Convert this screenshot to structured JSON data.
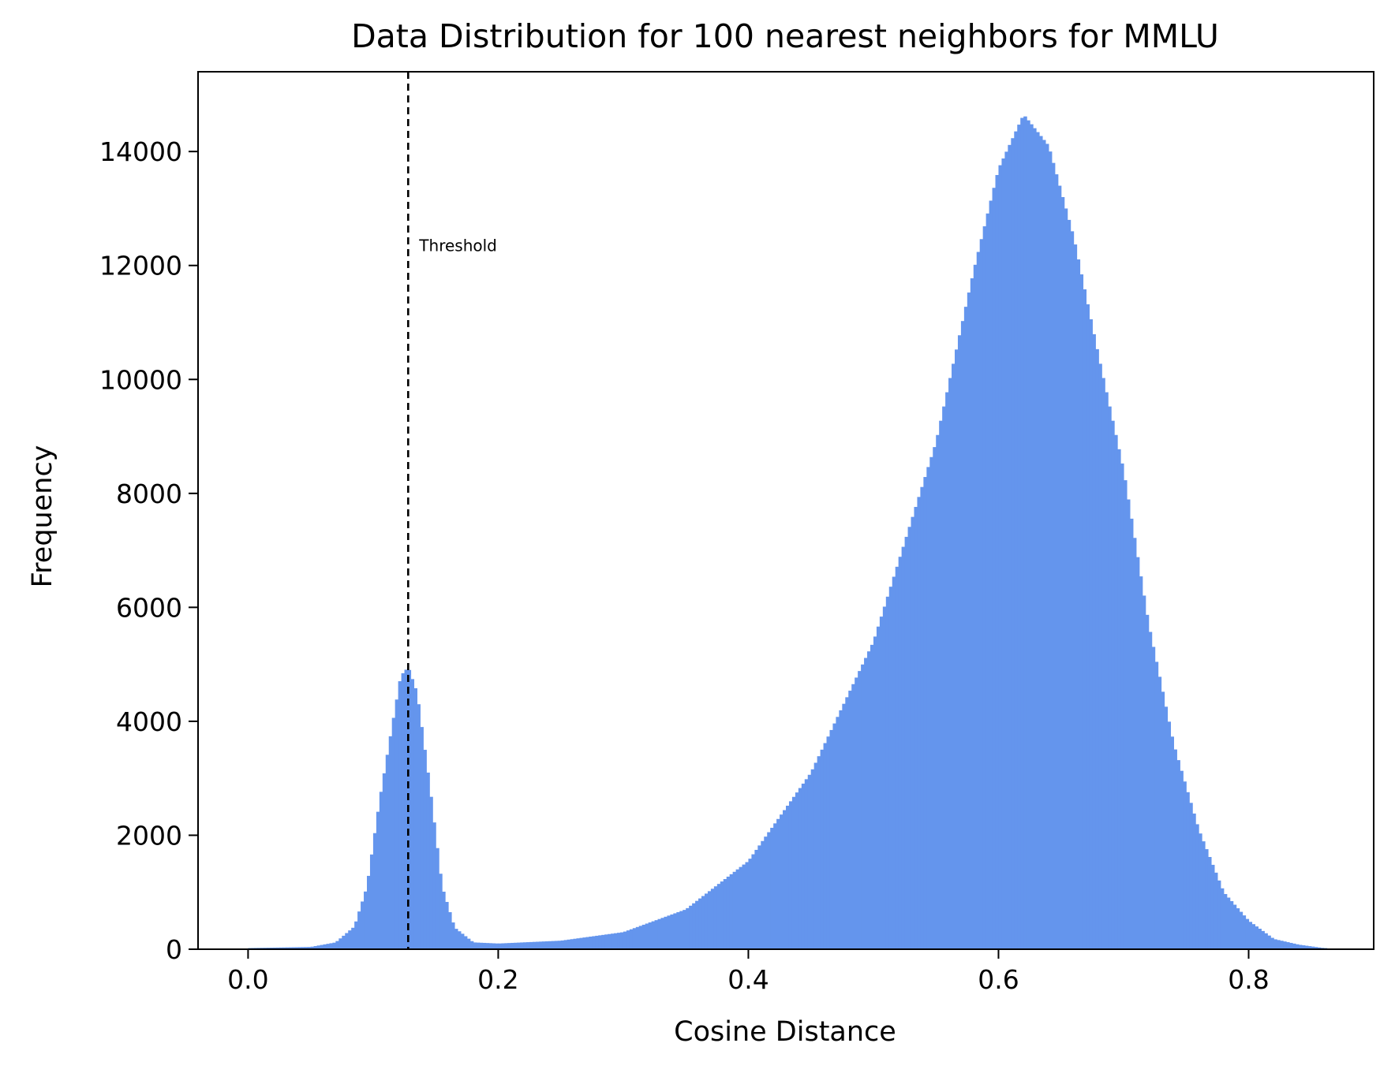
{
  "chart_data": {
    "type": "bar",
    "title": "Data Distribution for 100 nearest neighbors for MMLU",
    "xlabel": "Cosine Distance",
    "ylabel": "Frequency",
    "xlim": [
      -0.04,
      0.9
    ],
    "ylim": [
      0,
      15400
    ],
    "x_ticks": [
      "0.0",
      "0.2",
      "0.4",
      "0.6",
      "0.8"
    ],
    "y_ticks": [
      "0",
      "2000",
      "4000",
      "6000",
      "8000",
      "10000",
      "12000",
      "14000"
    ],
    "bar_color": "#6495ED",
    "grid": false,
    "threshold": {
      "x": 0.128,
      "label": "Threshold",
      "label_y": 12350,
      "style": "dashed",
      "color": "#000000"
    },
    "histogram": {
      "bin_width": 0.0025,
      "profile": [
        [
          0.0,
          20
        ],
        [
          0.05,
          40
        ],
        [
          0.07,
          120
        ],
        [
          0.085,
          400
        ],
        [
          0.095,
          1100
        ],
        [
          0.105,
          2600
        ],
        [
          0.115,
          3900
        ],
        [
          0.122,
          4800
        ],
        [
          0.128,
          4950
        ],
        [
          0.135,
          4500
        ],
        [
          0.145,
          2900
        ],
        [
          0.155,
          1100
        ],
        [
          0.165,
          380
        ],
        [
          0.18,
          120
        ],
        [
          0.2,
          100
        ],
        [
          0.25,
          150
        ],
        [
          0.3,
          300
        ],
        [
          0.35,
          700
        ],
        [
          0.4,
          1550
        ],
        [
          0.45,
          3100
        ],
        [
          0.5,
          5400
        ],
        [
          0.55,
          8900
        ],
        [
          0.58,
          11900
        ],
        [
          0.6,
          13700
        ],
        [
          0.62,
          14650
        ],
        [
          0.64,
          14100
        ],
        [
          0.66,
          12500
        ],
        [
          0.68,
          10400
        ],
        [
          0.7,
          8400
        ],
        [
          0.72,
          5700
        ],
        [
          0.74,
          3600
        ],
        [
          0.76,
          2100
        ],
        [
          0.78,
          1000
        ],
        [
          0.8,
          500
        ],
        [
          0.82,
          180
        ],
        [
          0.84,
          80
        ],
        [
          0.86,
          20
        ]
      ]
    }
  }
}
